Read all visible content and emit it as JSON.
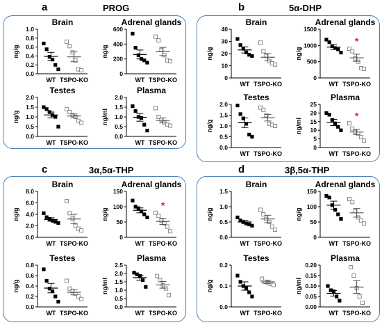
{
  "groups": [
    "WT",
    "TSPO-KO"
  ],
  "colors": {
    "panel_border": "#4a7fb5",
    "wt_marker": "#000000",
    "ko_marker": "#888888",
    "significance": "#e8231b"
  },
  "panels": [
    {
      "label": "a",
      "title": "PROG"
    },
    {
      "label": "b",
      "title": "5α-DHP"
    },
    {
      "label": "c",
      "title": "3α,5α-THP"
    },
    {
      "label": "d",
      "title": "3β,5α-THP"
    }
  ],
  "chart_data": [
    {
      "type": "scatter",
      "panel": "a",
      "title": "Brain",
      "ylabel": "ng/g",
      "categories": [
        "WT",
        "TSPO-KO"
      ],
      "ylim": [
        0,
        1.0
      ],
      "yticks": [
        0,
        0.2,
        0.4,
        0.6,
        0.8,
        1.0
      ],
      "ytick_labels": [
        "0.0",
        "0.2",
        "0.4",
        "0.6",
        "0.8",
        "1.0"
      ],
      "series": [
        {
          "values": [
            0.68,
            0.55,
            0.38,
            0.32,
            0.2,
            0.1
          ]
        },
        {
          "values": [
            0.72,
            0.62,
            0.48,
            0.3,
            0.1,
            0.08
          ]
        }
      ],
      "means": [
        0.39,
        0.38
      ],
      "sem": [
        0.09,
        0.11
      ],
      "significant": [
        false,
        false
      ]
    },
    {
      "type": "scatter",
      "panel": "a",
      "title": "Adrenal glands",
      "ylabel": "ng/g",
      "categories": [
        "WT",
        "TSPO-KO"
      ],
      "ylim": [
        0,
        600
      ],
      "yticks": [
        0,
        200,
        400,
        600
      ],
      "ytick_labels": [
        "0",
        "200",
        "400",
        "600"
      ],
      "series": [
        {
          "values": [
            540,
            350,
            250,
            200,
            180,
            150
          ]
        },
        {
          "values": [
            500,
            450,
            320,
            250,
            180,
            170
          ]
        }
      ],
      "means": [
        260,
        300
      ],
      "sem": [
        60,
        55
      ],
      "significant": [
        false,
        false
      ]
    },
    {
      "type": "scatter",
      "panel": "a",
      "title": "Testes",
      "ylabel": "ng/g",
      "categories": [
        "WT",
        "TSPO-KO"
      ],
      "ylim": [
        0,
        2.0
      ],
      "yticks": [
        0,
        0.5,
        1.0,
        1.5,
        2.0
      ],
      "ytick_labels": [
        "0.0",
        "0.5",
        "1.0",
        "1.5",
        "2.0"
      ],
      "series": [
        {
          "values": [
            1.5,
            1.4,
            1.25,
            1.1,
            1.0,
            0.5
          ]
        },
        {
          "values": [
            1.4,
            1.25,
            1.1,
            1.0,
            0.8,
            0.7
          ]
        }
      ],
      "means": [
        1.1,
        1.05
      ],
      "sem": [
        0.15,
        0.1
      ],
      "significant": [
        false,
        false
      ]
    },
    {
      "type": "scatter",
      "panel": "a",
      "title": "Plasma",
      "ylabel": "ng/ml",
      "categories": [
        "WT",
        "TSPO-KO"
      ],
      "ylim": [
        0,
        2.0
      ],
      "yticks": [
        0,
        0.5,
        1.0,
        1.5,
        2.0
      ],
      "ytick_labels": [
        "0.0",
        "0.5",
        "1.0",
        "1.5",
        "2.0"
      ],
      "series": [
        {
          "values": [
            1.55,
            1.3,
            1.0,
            0.95,
            0.6,
            0.3
          ]
        },
        {
          "values": [
            1.45,
            1.0,
            0.85,
            0.7,
            0.6,
            0.55
          ]
        }
      ],
      "means": [
        0.98,
        0.82
      ],
      "sem": [
        0.2,
        0.13
      ],
      "significant": [
        false,
        false
      ]
    },
    {
      "type": "scatter",
      "panel": "b",
      "title": "Brain",
      "ylabel": "ng/g",
      "categories": [
        "WT",
        "TSPO-KO"
      ],
      "ylim": [
        0,
        40
      ],
      "yticks": [
        0,
        10,
        20,
        30,
        40
      ],
      "ytick_labels": [
        "0",
        "10",
        "20",
        "30",
        "40"
      ],
      "series": [
        {
          "values": [
            32,
            27,
            24,
            21,
            19,
            18
          ]
        },
        {
          "values": [
            29,
            22,
            18,
            14,
            12,
            11
          ]
        }
      ],
      "means": [
        23,
        17
      ],
      "sem": [
        2.5,
        3.0
      ],
      "significant": [
        false,
        false
      ]
    },
    {
      "type": "scatter",
      "panel": "b",
      "title": "Adrenal glands",
      "ylabel": "ng/g",
      "categories": [
        "WT",
        "TSPO-KO"
      ],
      "ylim": [
        0,
        1500
      ],
      "yticks": [
        0,
        500,
        1000,
        1500
      ],
      "ytick_labels": [
        "0",
        "500",
        "1000",
        "1500"
      ],
      "series": [
        {
          "values": [
            1180,
            1100,
            980,
            920,
            880,
            780
          ]
        },
        {
          "values": [
            900,
            820,
            600,
            500,
            300,
            280
          ]
        }
      ],
      "means": [
        950,
        620
      ],
      "sem": [
        70,
        110
      ],
      "significant": [
        false,
        true
      ]
    },
    {
      "type": "scatter",
      "panel": "b",
      "title": "Testes",
      "ylabel": "ng/g",
      "categories": [
        "WT",
        "TSPO-KO"
      ],
      "ylim": [
        0,
        2.0
      ],
      "yticks": [
        0,
        0.5,
        1.0,
        1.5,
        2.0
      ],
      "ytick_labels": [
        "0.0",
        "0.5",
        "1.0",
        "1.5",
        "2.0"
      ],
      "series": [
        {
          "values": [
            1.95,
            1.55,
            1.35,
            1.1,
            0.6,
            0.5
          ]
        },
        {
          "values": [
            1.85,
            1.75,
            1.5,
            1.1,
            1.05,
            1.0
          ]
        }
      ],
      "means": [
        1.15,
        1.38
      ],
      "sem": [
        0.22,
        0.15
      ],
      "significant": [
        false,
        false
      ]
    },
    {
      "type": "scatter",
      "panel": "b",
      "title": "Plasma",
      "ylabel": "ng/ml",
      "categories": [
        "WT",
        "TSPO-KO"
      ],
      "ylim": [
        0,
        25
      ],
      "yticks": [
        0,
        5,
        10,
        15,
        20,
        25
      ],
      "ytick_labels": [
        "0",
        "5",
        "10",
        "15",
        "20",
        "25"
      ],
      "series": [
        {
          "values": [
            20,
            19,
            16,
            14,
            12,
            10
          ]
        },
        {
          "values": [
            14,
            11,
            9,
            8,
            6,
            4
          ]
        }
      ],
      "means": [
        14.5,
        9
      ],
      "sem": [
        1.8,
        1.5
      ],
      "significant": [
        false,
        true
      ]
    },
    {
      "type": "scatter",
      "panel": "c",
      "title": "Brain",
      "ylabel": "ng/g",
      "categories": [
        "WT",
        "TSPO-KO"
      ],
      "ylim": [
        0,
        8.0
      ],
      "yticks": [
        0,
        2,
        4,
        6,
        8
      ],
      "ytick_labels": [
        "0.0",
        "2.0",
        "4.0",
        "6.0",
        "8.0"
      ],
      "series": [
        {
          "values": [
            4.2,
            3.5,
            3.2,
            2.9,
            2.7,
            2.5
          ]
        },
        {
          "values": [
            6.3,
            4.2,
            3.3,
            2.0,
            1.5,
            1.2
          ]
        }
      ],
      "means": [
        3.1,
        3.2
      ],
      "sem": [
        0.3,
        0.8
      ],
      "significant": [
        false,
        false
      ]
    },
    {
      "type": "scatter",
      "panel": "c",
      "title": "Adrenal glands",
      "ylabel": "ng/g",
      "categories": [
        "WT",
        "TSPO-KO"
      ],
      "ylim": [
        0,
        150
      ],
      "yticks": [
        0,
        50,
        100,
        150
      ],
      "ytick_labels": [
        "0",
        "50",
        "100",
        "150"
      ],
      "series": [
        {
          "values": [
            120,
            100,
            95,
            85,
            75,
            65
          ]
        },
        {
          "values": [
            80,
            70,
            55,
            45,
            35,
            20
          ]
        }
      ],
      "means": [
        88,
        52
      ],
      "sem": [
        8,
        10
      ],
      "significant": [
        false,
        true
      ]
    },
    {
      "type": "scatter",
      "panel": "c",
      "title": "Testes",
      "ylabel": "ng/g",
      "categories": [
        "WT",
        "TSPO-KO"
      ],
      "ylim": [
        0,
        0.8
      ],
      "yticks": [
        0,
        0.2,
        0.4,
        0.6,
        0.8
      ],
      "ytick_labels": [
        "0.0",
        "0.2",
        "0.4",
        "0.6",
        "0.8"
      ],
      "series": [
        {
          "values": [
            0.72,
            0.5,
            0.35,
            0.3,
            0.2,
            0.1
          ]
        },
        {
          "values": [
            0.5,
            0.35,
            0.3,
            0.25,
            0.2,
            0.15
          ]
        }
      ],
      "means": [
        0.36,
        0.28
      ],
      "sem": [
        0.09,
        0.05
      ],
      "significant": [
        false,
        false
      ]
    },
    {
      "type": "scatter",
      "panel": "c",
      "title": "Plasma",
      "ylabel": "ng/ml",
      "categories": [
        "WT",
        "TSPO-KO"
      ],
      "ylim": [
        0,
        2.5
      ],
      "yticks": [
        0,
        0.5,
        1.0,
        1.5,
        2.0,
        2.5
      ],
      "ytick_labels": [
        "0.0",
        "0.5",
        "1.0",
        "1.5",
        "2.0",
        "2.5"
      ],
      "series": [
        {
          "values": [
            2.05,
            1.95,
            1.85,
            1.6,
            1.2
          ]
        },
        {
          "values": [
            1.85,
            1.6,
            1.3,
            1.1,
            0.7
          ]
        }
      ],
      "means": [
        1.75,
        1.32
      ],
      "sem": [
        0.15,
        0.2
      ],
      "significant": [
        false,
        false
      ]
    },
    {
      "type": "scatter",
      "panel": "d",
      "title": "Brain",
      "ylabel": "ng/g",
      "categories": [
        "WT",
        "TSPO-KO"
      ],
      "ylim": [
        0,
        1.5
      ],
      "yticks": [
        0,
        0.5,
        1.0,
        1.5
      ],
      "ytick_labels": [
        "0.0",
        "0.5",
        "1.0",
        "1.5"
      ],
      "series": [
        {
          "values": [
            0.65,
            0.55,
            0.5,
            0.45,
            0.42,
            0.38
          ]
        },
        {
          "values": [
            0.9,
            0.75,
            0.6,
            0.5,
            0.35,
            0.25
          ]
        }
      ],
      "means": [
        0.5,
        0.6
      ],
      "sem": [
        0.05,
        0.12
      ],
      "significant": [
        false,
        false
      ]
    },
    {
      "type": "scatter",
      "panel": "d",
      "title": "Adrenal glands",
      "ylabel": "ng/g",
      "categories": [
        "WT",
        "TSPO-KO"
      ],
      "ylim": [
        0,
        150
      ],
      "yticks": [
        0,
        50,
        100,
        150
      ],
      "ytick_labels": [
        "0",
        "50",
        "100",
        "150"
      ],
      "series": [
        {
          "values": [
            135,
            130,
            105,
            90,
            75,
            60
          ]
        },
        {
          "values": [
            125,
            115,
            85,
            65,
            55,
            45
          ]
        }
      ],
      "means": [
        105,
        80
      ],
      "sem": [
        13,
        14
      ],
      "significant": [
        false,
        false
      ]
    },
    {
      "type": "scatter",
      "panel": "d",
      "title": "Testes",
      "ylabel": "ng/g",
      "categories": [
        "WT",
        "TSPO-KO"
      ],
      "ylim": [
        0,
        0.2
      ],
      "yticks": [
        0,
        0.1,
        0.2
      ],
      "ytick_labels": [
        "0.0",
        "0.1",
        "0.2"
      ],
      "series": [
        {
          "values": [
            0.15,
            0.12,
            0.1,
            0.09,
            0.07,
            0.05
          ]
        },
        {
          "values": [
            0.135,
            0.12,
            0.115,
            0.11,
            0.105
          ]
        }
      ],
      "means": [
        0.1,
        0.12
      ],
      "sem": [
        0.02,
        0.008
      ],
      "significant": [
        false,
        false
      ]
    },
    {
      "type": "scatter",
      "panel": "d",
      "title": "Plasma",
      "ylabel": "ng/ml",
      "categories": [
        "WT",
        "TSPO-KO"
      ],
      "ylim": [
        0,
        0.2
      ],
      "yticks": [
        0,
        0.05,
        0.1,
        0.15,
        0.2
      ],
      "ytick_labels": [
        "0.00",
        "0.05",
        "0.10",
        "0.15",
        "0.20"
      ],
      "series": [
        {
          "values": [
            0.1,
            0.08,
            0.075,
            0.05,
            0.03
          ]
        },
        {
          "values": [
            0.19,
            0.15,
            0.09,
            0.05,
            0.02
          ]
        }
      ],
      "means": [
        0.065,
        0.095
      ],
      "sem": [
        0.013,
        0.03
      ],
      "significant": [
        false,
        false
      ]
    }
  ]
}
